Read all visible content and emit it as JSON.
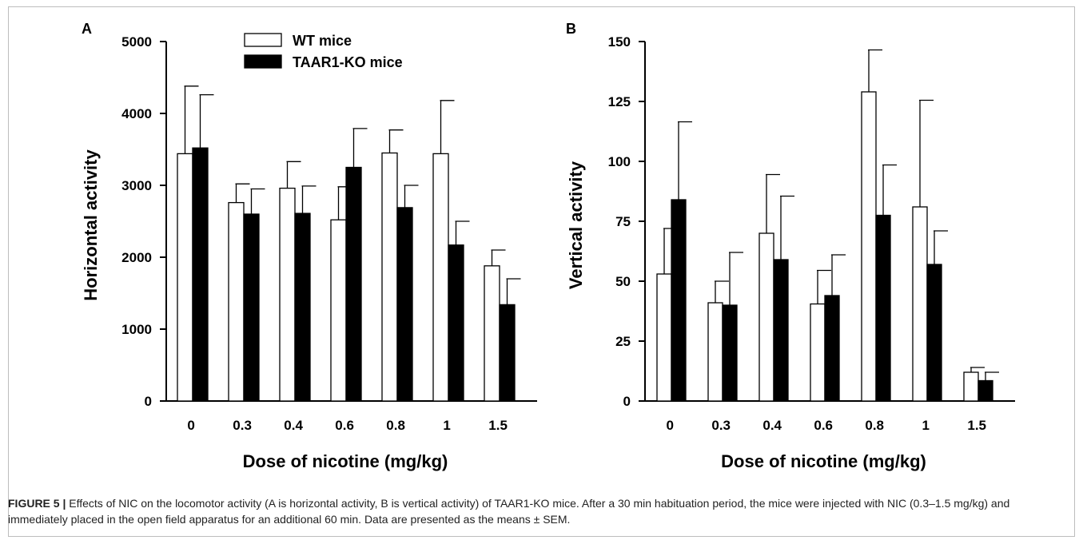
{
  "chart_data": [
    {
      "type": "bar",
      "panel": "A",
      "xlabel": "Dose of nicotine (mg/kg)",
      "ylabel": "Horizontal activity",
      "ylim": [
        0,
        5000
      ],
      "yticks": [
        0,
        1000,
        2000,
        3000,
        4000,
        5000
      ],
      "categories": [
        "0",
        "0.3",
        "0.4",
        "0.6",
        "0.8",
        "1",
        "1.5"
      ],
      "legend": "top-center",
      "series": [
        {
          "name": "WT mice",
          "color": "#ffffff",
          "values": [
            3440,
            2760,
            2960,
            2520,
            3450,
            3440,
            1880
          ],
          "errors": [
            940,
            260,
            370,
            460,
            320,
            740,
            220
          ]
        },
        {
          "name": "TAAR1-KO mice",
          "color": "#000000",
          "values": [
            3520,
            2600,
            2610,
            3250,
            2690,
            2170,
            1340
          ],
          "errors": [
            740,
            350,
            380,
            540,
            310,
            330,
            360
          ]
        }
      ]
    },
    {
      "type": "bar",
      "panel": "B",
      "xlabel": "Dose of nicotine (mg/kg)",
      "ylabel": "Vertical activity",
      "ylim": [
        0,
        150
      ],
      "yticks": [
        0,
        25,
        50,
        75,
        100,
        125,
        150
      ],
      "categories": [
        "0",
        "0.3",
        "0.4",
        "0.6",
        "0.8",
        "1",
        "1.5"
      ],
      "series": [
        {
          "name": "WT mice",
          "color": "#ffffff",
          "values": [
            53,
            41,
            70,
            40.5,
            129,
            81,
            12
          ],
          "errors": [
            19,
            9,
            24.5,
            14,
            17.5,
            44.5,
            2
          ]
        },
        {
          "name": "TAAR1-KO mice",
          "color": "#000000",
          "values": [
            84,
            40,
            59,
            44,
            77.5,
            57,
            8.5
          ],
          "errors": [
            32.5,
            22,
            26.5,
            17,
            21,
            14,
            3.5
          ]
        }
      ]
    }
  ],
  "caption": {
    "lead": "FIGURE 5 |",
    "text": " Effects of NIC on the locomotor activity (A is horizontal activity, B is vertical activity) of TAAR1-KO mice. After a 30 min habituation period, the mice were injected with NIC (0.3–1.5 mg/kg) and immediately placed in the open field apparatus for an additional 60 min. Data are presented as the means ± SEM."
  }
}
